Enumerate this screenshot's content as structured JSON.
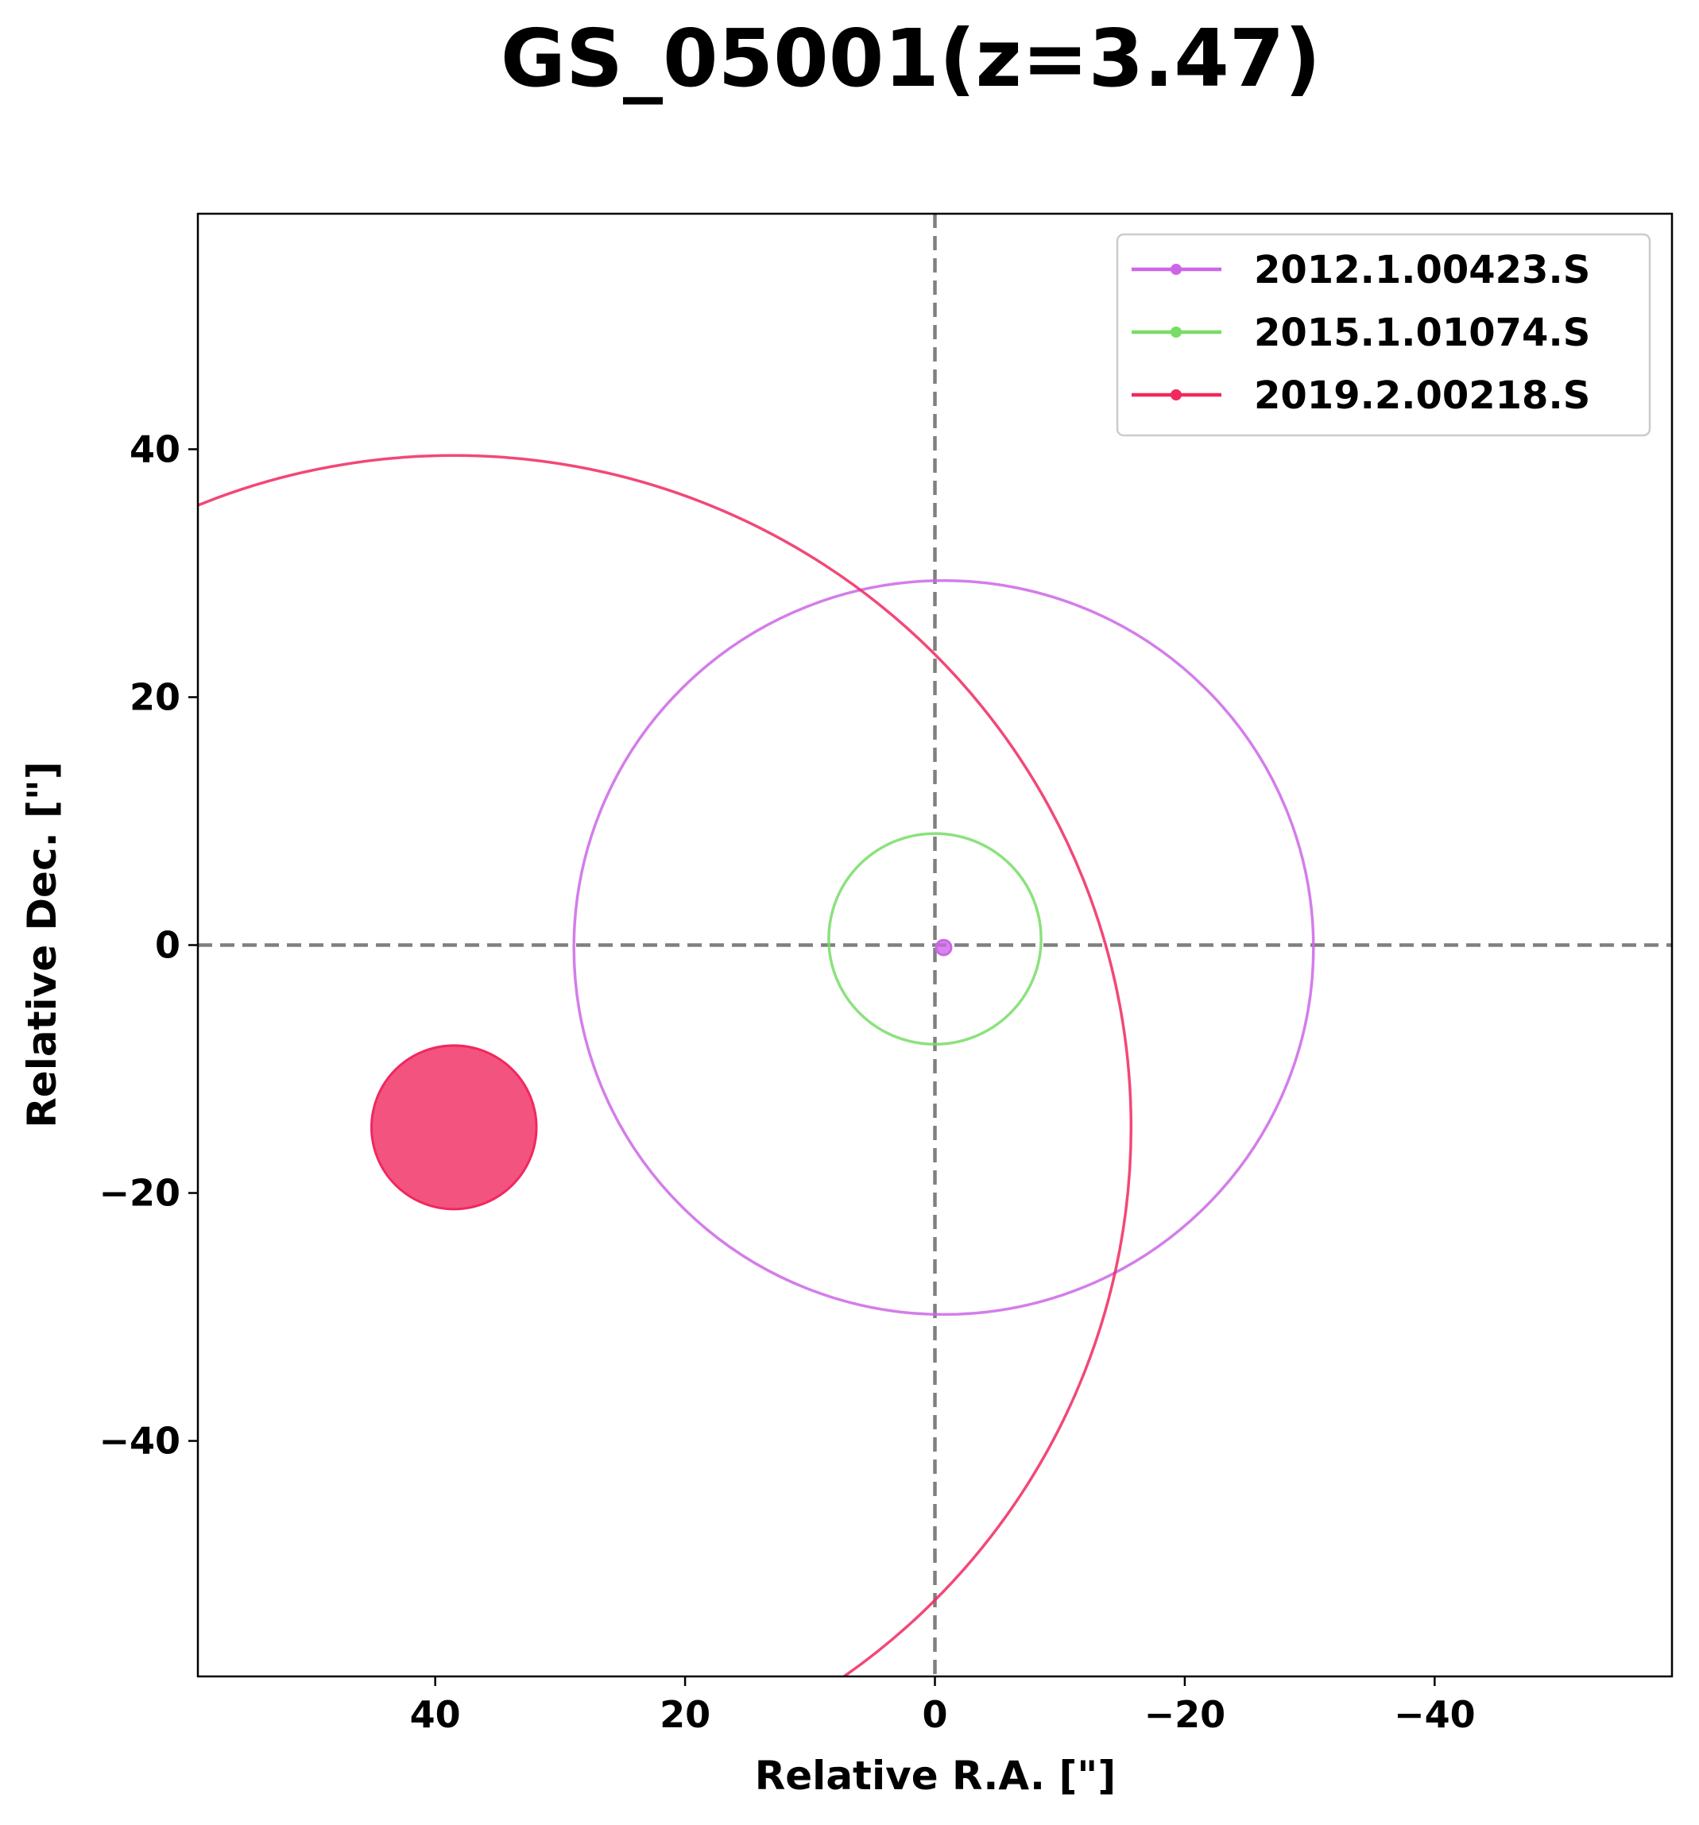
{
  "chart_data": {
    "type": "scatter",
    "title": "GS_05001(z=3.47)",
    "xlabel": "Relative R.A. [\"]",
    "ylabel": "Relative Dec. [\"]",
    "xlim": [
      59,
      -59
    ],
    "ylim": [
      -59,
      59
    ],
    "x_inverted": true,
    "grid": false,
    "legend_position": "top-right",
    "x_ticks": [
      40,
      20,
      0,
      -20,
      -40
    ],
    "x_tick_labels": [
      "40",
      "20",
      "0",
      "−20",
      "−40"
    ],
    "y_ticks": [
      40,
      20,
      0,
      -20,
      -40
    ],
    "y_tick_labels": [
      "40",
      "20",
      "0",
      "−20",
      "−40"
    ],
    "reference_lines": [
      {
        "orientation": "vertical",
        "value": 0,
        "style": "dashed",
        "color": "#808080"
      },
      {
        "orientation": "horizontal",
        "value": 0,
        "style": "dashed",
        "color": "#808080"
      }
    ],
    "series": [
      {
        "name": "2012.1.00423.S",
        "color": "#cc66e6",
        "source": {
          "x": -0.7,
          "y": -0.2,
          "radius": 0.6
        },
        "field_of_view": {
          "x": -0.7,
          "y": -0.2,
          "radius": 29.6
        }
      },
      {
        "name": "2015.1.01074.S",
        "color": "#77dd66",
        "source": {
          "x": 0.0,
          "y": 0.0,
          "radius": 0.0
        },
        "field_of_view": {
          "x": 0.0,
          "y": 0.5,
          "radius": 8.5
        }
      },
      {
        "name": "2019.2.00218.S",
        "color": "#f0285f",
        "source": {
          "x": 38.5,
          "y": -14.7,
          "radius": 6.6
        },
        "field_of_view": {
          "x": 38.5,
          "y": -14.7,
          "radius": 54.2
        }
      }
    ]
  }
}
